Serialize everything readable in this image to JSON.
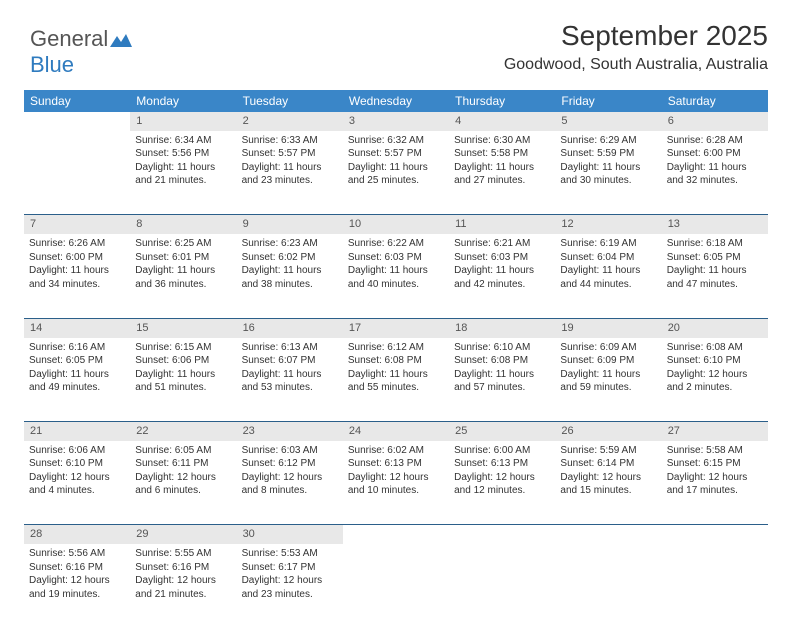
{
  "logo": {
    "text1": "General",
    "text2": "Blue"
  },
  "title": "September 2025",
  "subtitle": "Goodwood, South Australia, Australia",
  "colors": {
    "header_bg": "#3a86c8",
    "header_fg": "#ffffff",
    "daynum_bg": "#e8e8e8",
    "rule": "#2b5f8a",
    "logo_accent": "#2f7bbf"
  },
  "typography": {
    "title_fontsize": 28,
    "subtitle_fontsize": 16,
    "header_fontsize": 12,
    "cell_fontsize": 10
  },
  "weekdays": [
    "Sunday",
    "Monday",
    "Tuesday",
    "Wednesday",
    "Thursday",
    "Friday",
    "Saturday"
  ],
  "weeks": [
    {
      "nums": [
        "",
        "1",
        "2",
        "3",
        "4",
        "5",
        "6"
      ],
      "cells": [
        null,
        {
          "sunrise": "Sunrise: 6:34 AM",
          "sunset": "Sunset: 5:56 PM",
          "day1": "Daylight: 11 hours",
          "day2": "and 21 minutes."
        },
        {
          "sunrise": "Sunrise: 6:33 AM",
          "sunset": "Sunset: 5:57 PM",
          "day1": "Daylight: 11 hours",
          "day2": "and 23 minutes."
        },
        {
          "sunrise": "Sunrise: 6:32 AM",
          "sunset": "Sunset: 5:57 PM",
          "day1": "Daylight: 11 hours",
          "day2": "and 25 minutes."
        },
        {
          "sunrise": "Sunrise: 6:30 AM",
          "sunset": "Sunset: 5:58 PM",
          "day1": "Daylight: 11 hours",
          "day2": "and 27 minutes."
        },
        {
          "sunrise": "Sunrise: 6:29 AM",
          "sunset": "Sunset: 5:59 PM",
          "day1": "Daylight: 11 hours",
          "day2": "and 30 minutes."
        },
        {
          "sunrise": "Sunrise: 6:28 AM",
          "sunset": "Sunset: 6:00 PM",
          "day1": "Daylight: 11 hours",
          "day2": "and 32 minutes."
        }
      ]
    },
    {
      "nums": [
        "7",
        "8",
        "9",
        "10",
        "11",
        "12",
        "13"
      ],
      "cells": [
        {
          "sunrise": "Sunrise: 6:26 AM",
          "sunset": "Sunset: 6:00 PM",
          "day1": "Daylight: 11 hours",
          "day2": "and 34 minutes."
        },
        {
          "sunrise": "Sunrise: 6:25 AM",
          "sunset": "Sunset: 6:01 PM",
          "day1": "Daylight: 11 hours",
          "day2": "and 36 minutes."
        },
        {
          "sunrise": "Sunrise: 6:23 AM",
          "sunset": "Sunset: 6:02 PM",
          "day1": "Daylight: 11 hours",
          "day2": "and 38 minutes."
        },
        {
          "sunrise": "Sunrise: 6:22 AM",
          "sunset": "Sunset: 6:03 PM",
          "day1": "Daylight: 11 hours",
          "day2": "and 40 minutes."
        },
        {
          "sunrise": "Sunrise: 6:21 AM",
          "sunset": "Sunset: 6:03 PM",
          "day1": "Daylight: 11 hours",
          "day2": "and 42 minutes."
        },
        {
          "sunrise": "Sunrise: 6:19 AM",
          "sunset": "Sunset: 6:04 PM",
          "day1": "Daylight: 11 hours",
          "day2": "and 44 minutes."
        },
        {
          "sunrise": "Sunrise: 6:18 AM",
          "sunset": "Sunset: 6:05 PM",
          "day1": "Daylight: 11 hours",
          "day2": "and 47 minutes."
        }
      ]
    },
    {
      "nums": [
        "14",
        "15",
        "16",
        "17",
        "18",
        "19",
        "20"
      ],
      "cells": [
        {
          "sunrise": "Sunrise: 6:16 AM",
          "sunset": "Sunset: 6:05 PM",
          "day1": "Daylight: 11 hours",
          "day2": "and 49 minutes."
        },
        {
          "sunrise": "Sunrise: 6:15 AM",
          "sunset": "Sunset: 6:06 PM",
          "day1": "Daylight: 11 hours",
          "day2": "and 51 minutes."
        },
        {
          "sunrise": "Sunrise: 6:13 AM",
          "sunset": "Sunset: 6:07 PM",
          "day1": "Daylight: 11 hours",
          "day2": "and 53 minutes."
        },
        {
          "sunrise": "Sunrise: 6:12 AM",
          "sunset": "Sunset: 6:08 PM",
          "day1": "Daylight: 11 hours",
          "day2": "and 55 minutes."
        },
        {
          "sunrise": "Sunrise: 6:10 AM",
          "sunset": "Sunset: 6:08 PM",
          "day1": "Daylight: 11 hours",
          "day2": "and 57 minutes."
        },
        {
          "sunrise": "Sunrise: 6:09 AM",
          "sunset": "Sunset: 6:09 PM",
          "day1": "Daylight: 11 hours",
          "day2": "and 59 minutes."
        },
        {
          "sunrise": "Sunrise: 6:08 AM",
          "sunset": "Sunset: 6:10 PM",
          "day1": "Daylight: 12 hours",
          "day2": "and 2 minutes."
        }
      ]
    },
    {
      "nums": [
        "21",
        "22",
        "23",
        "24",
        "25",
        "26",
        "27"
      ],
      "cells": [
        {
          "sunrise": "Sunrise: 6:06 AM",
          "sunset": "Sunset: 6:10 PM",
          "day1": "Daylight: 12 hours",
          "day2": "and 4 minutes."
        },
        {
          "sunrise": "Sunrise: 6:05 AM",
          "sunset": "Sunset: 6:11 PM",
          "day1": "Daylight: 12 hours",
          "day2": "and 6 minutes."
        },
        {
          "sunrise": "Sunrise: 6:03 AM",
          "sunset": "Sunset: 6:12 PM",
          "day1": "Daylight: 12 hours",
          "day2": "and 8 minutes."
        },
        {
          "sunrise": "Sunrise: 6:02 AM",
          "sunset": "Sunset: 6:13 PM",
          "day1": "Daylight: 12 hours",
          "day2": "and 10 minutes."
        },
        {
          "sunrise": "Sunrise: 6:00 AM",
          "sunset": "Sunset: 6:13 PM",
          "day1": "Daylight: 12 hours",
          "day2": "and 12 minutes."
        },
        {
          "sunrise": "Sunrise: 5:59 AM",
          "sunset": "Sunset: 6:14 PM",
          "day1": "Daylight: 12 hours",
          "day2": "and 15 minutes."
        },
        {
          "sunrise": "Sunrise: 5:58 AM",
          "sunset": "Sunset: 6:15 PM",
          "day1": "Daylight: 12 hours",
          "day2": "and 17 minutes."
        }
      ]
    },
    {
      "nums": [
        "28",
        "29",
        "30",
        "",
        "",
        "",
        ""
      ],
      "cells": [
        {
          "sunrise": "Sunrise: 5:56 AM",
          "sunset": "Sunset: 6:16 PM",
          "day1": "Daylight: 12 hours",
          "day2": "and 19 minutes."
        },
        {
          "sunrise": "Sunrise: 5:55 AM",
          "sunset": "Sunset: 6:16 PM",
          "day1": "Daylight: 12 hours",
          "day2": "and 21 minutes."
        },
        {
          "sunrise": "Sunrise: 5:53 AM",
          "sunset": "Sunset: 6:17 PM",
          "day1": "Daylight: 12 hours",
          "day2": "and 23 minutes."
        },
        null,
        null,
        null,
        null
      ]
    }
  ]
}
